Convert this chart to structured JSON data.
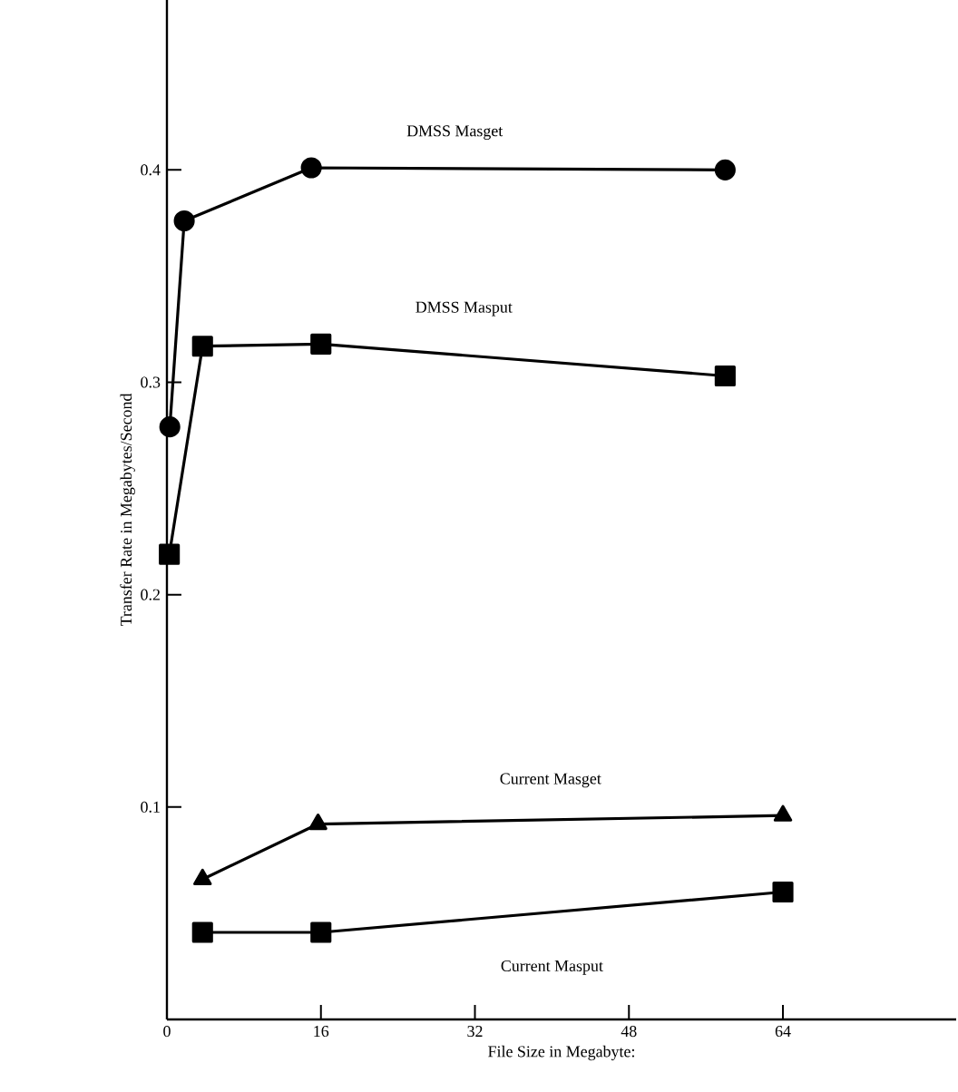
{
  "chart_data": {
    "type": "line",
    "xlabel": "File Size in Megabyte:",
    "ylabel": "Transfer Rate in Megabytes/Second",
    "xlim": [
      0,
      82
    ],
    "ylim": [
      0,
      0.48
    ],
    "xticks": [
      0,
      16,
      32,
      48,
      64
    ],
    "yticks": [
      0.1,
      0.2,
      0.3,
      0.4
    ],
    "grid": false,
    "legend": false,
    "series": [
      {
        "name": "DMSS Masget",
        "color": "#000000",
        "marker": "circle",
        "x": [
          0.3,
          1.8,
          15,
          58
        ],
        "values": [
          0.279,
          0.376,
          0.401,
          0.4
        ]
      },
      {
        "name": "DMSS Masput",
        "color": "#000000",
        "marker": "square",
        "x": [
          0.25,
          3.7,
          16,
          58
        ],
        "values": [
          0.219,
          0.317,
          0.318,
          0.303
        ]
      },
      {
        "name": "Current Masget",
        "color": "#000000",
        "marker": "triangle",
        "x": [
          3.7,
          15.7,
          64
        ],
        "values": [
          0.066,
          0.092,
          0.096
        ]
      },
      {
        "name": "Current Masput",
        "color": "#000000",
        "marker": "square",
        "x": [
          3.7,
          16,
          64
        ],
        "values": [
          0.041,
          0.041,
          0.06
        ]
      }
    ]
  }
}
